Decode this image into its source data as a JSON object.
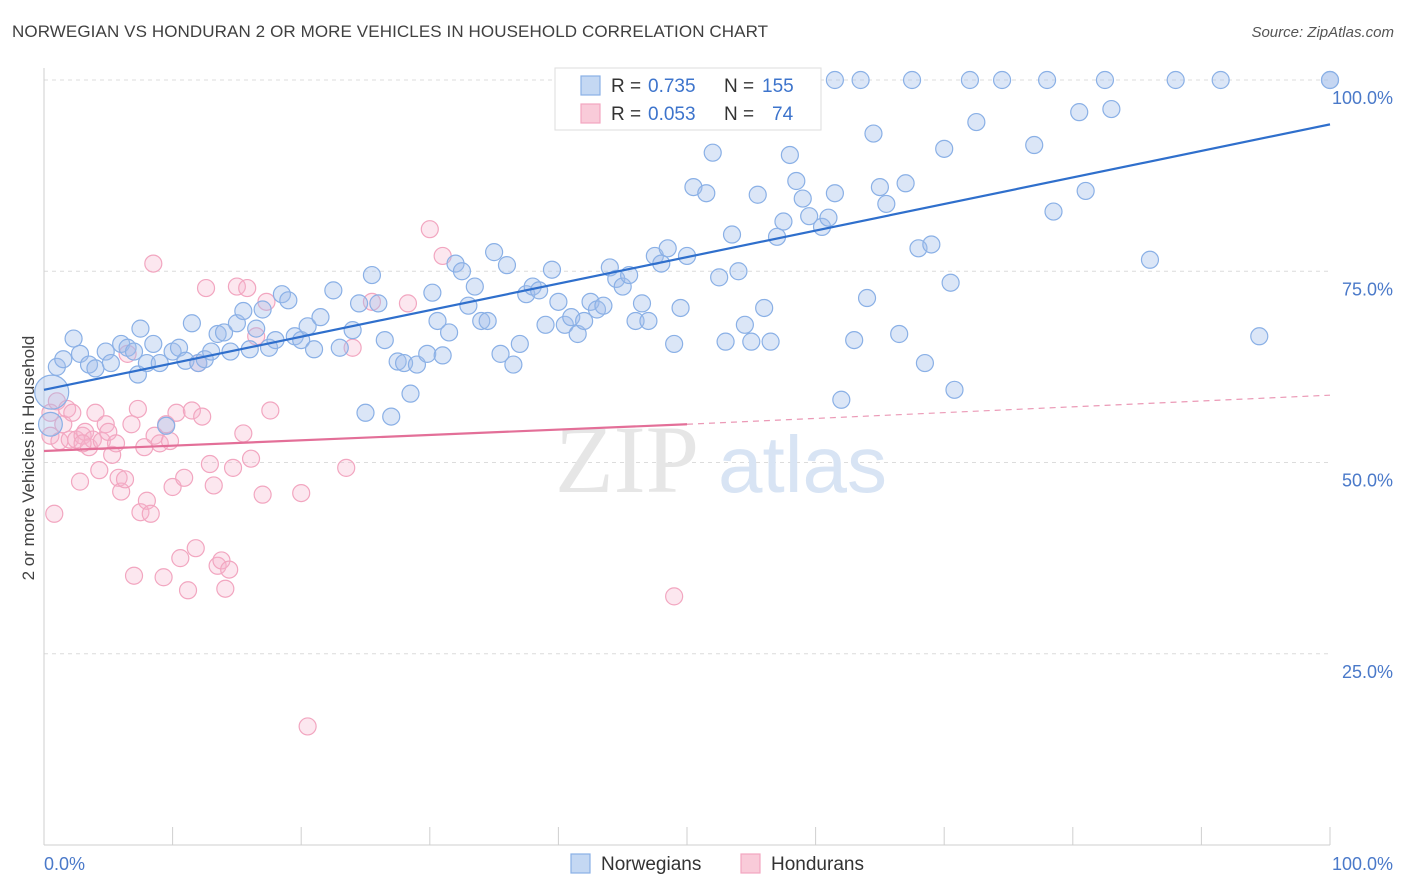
{
  "title": "NORWEGIAN VS HONDURAN 2 OR MORE VEHICLES IN HOUSEHOLD CORRELATION CHART",
  "source": "Source: ZipAtlas.com",
  "watermark": {
    "zip": "ZIP",
    "atlas": "atlas"
  },
  "colors": {
    "blue": "#8ab0e6",
    "blue_line": "#2f6fcc",
    "pink": "#f2a6c0",
    "pink_line": "#e36f98",
    "tick": "#4a79c9"
  },
  "legend_top": {
    "rows": [
      {
        "r_label": "R =",
        "r_value": "0.735",
        "n_label": "N =",
        "n_value": "155"
      },
      {
        "r_label": "R =",
        "r_value": "0.053",
        "n_label": "N =",
        "n_value": "74"
      }
    ]
  },
  "legend_bottom": {
    "items": [
      "Norwegians",
      "Hondurans"
    ]
  },
  "chart_data": {
    "type": "scatter",
    "title": "NORWEGIAN VS HONDURAN 2 OR MORE VEHICLES IN HOUSEHOLD CORRELATION CHART",
    "xlabel": "",
    "ylabel": "2 or more Vehicles in Household",
    "xlim": [
      0,
      100
    ],
    "ylim": [
      0,
      100
    ],
    "x_tick_labels": [
      "0.0%",
      "100.0%"
    ],
    "y_tick_labels": [
      "100.0%",
      "75.0%",
      "50.0%",
      "25.0%"
    ],
    "y_ticks": [
      100,
      75,
      50,
      25
    ],
    "grid": true,
    "legend_position": "top-center",
    "series": [
      {
        "name": "Norwegians",
        "r": 0.735,
        "n": 155,
        "trend": {
          "x": [
            0,
            100
          ],
          "y": [
            59.5,
            94.2
          ],
          "style": "solid"
        },
        "points": [
          [
            0.6,
            59.2,
            2
          ],
          [
            0.5,
            55.0,
            1.4
          ],
          [
            1.0,
            62.5,
            1
          ],
          [
            1.5,
            63.5,
            1
          ],
          [
            2.3,
            66.2,
            1
          ],
          [
            2.8,
            64.2,
            1
          ],
          [
            3.5,
            62.8,
            1
          ],
          [
            4.0,
            62.3,
            1
          ],
          [
            4.8,
            64.5,
            1
          ],
          [
            5.2,
            63.0,
            1
          ],
          [
            6.0,
            65.5,
            1
          ],
          [
            6.5,
            65.0,
            1
          ],
          [
            7.0,
            64.5,
            1
          ],
          [
            7.3,
            61.5,
            1
          ],
          [
            7.5,
            67.5,
            1
          ],
          [
            8.0,
            63.0,
            1
          ],
          [
            8.5,
            65.5,
            1
          ],
          [
            9.0,
            63.0,
            1
          ],
          [
            9.5,
            54.8,
            1
          ],
          [
            10.0,
            64.5,
            1
          ],
          [
            10.5,
            65.0,
            1
          ],
          [
            11.0,
            63.3,
            1
          ],
          [
            11.5,
            68.2,
            1
          ],
          [
            12.0,
            63.0,
            1
          ],
          [
            12.5,
            63.5,
            1
          ],
          [
            13.0,
            64.5,
            1
          ],
          [
            13.5,
            66.8,
            1
          ],
          [
            14.0,
            67.0,
            1
          ],
          [
            14.5,
            64.5,
            1
          ],
          [
            15.0,
            68.2,
            1
          ],
          [
            15.5,
            69.8,
            1
          ],
          [
            16.0,
            64.8,
            1
          ],
          [
            16.5,
            67.5,
            1
          ],
          [
            17.0,
            70.0,
            1
          ],
          [
            17.5,
            65.0,
            1
          ],
          [
            18.0,
            66.0,
            1
          ],
          [
            18.5,
            72.0,
            1
          ],
          [
            19.0,
            71.2,
            1
          ],
          [
            19.5,
            66.5,
            1
          ],
          [
            20.0,
            66.0,
            1
          ],
          [
            20.5,
            67.8,
            1
          ],
          [
            21.0,
            64.8,
            1
          ],
          [
            21.5,
            69.0,
            1
          ],
          [
            22.5,
            72.5,
            1
          ],
          [
            23.0,
            65.0,
            1
          ],
          [
            24.0,
            67.3,
            1
          ],
          [
            24.5,
            70.8,
            1
          ],
          [
            25.0,
            56.5,
            1
          ],
          [
            25.5,
            74.5,
            1
          ],
          [
            26.0,
            70.8,
            1
          ],
          [
            26.5,
            66.0,
            1
          ],
          [
            27.0,
            56.0,
            1
          ],
          [
            27.5,
            63.2,
            1
          ],
          [
            28.0,
            63.0,
            1
          ],
          [
            28.5,
            59.0,
            1
          ],
          [
            29.0,
            62.8,
            1
          ],
          [
            29.8,
            64.2,
            1
          ],
          [
            30.2,
            72.2,
            1
          ],
          [
            30.6,
            68.5,
            1
          ],
          [
            31.0,
            64.0,
            1
          ],
          [
            31.5,
            67.0,
            1
          ],
          [
            32.0,
            76.0,
            1
          ],
          [
            32.5,
            75.0,
            1
          ],
          [
            33.0,
            70.5,
            1
          ],
          [
            33.5,
            73.0,
            1
          ],
          [
            34.0,
            68.5,
            1
          ],
          [
            34.5,
            68.5,
            1
          ],
          [
            35.0,
            77.5,
            1
          ],
          [
            35.5,
            64.2,
            1
          ],
          [
            36.0,
            75.8,
            1
          ],
          [
            36.5,
            62.8,
            1
          ],
          [
            37.0,
            65.5,
            1
          ],
          [
            37.5,
            72.0,
            1
          ],
          [
            38.0,
            73.0,
            1
          ],
          [
            38.5,
            72.5,
            1
          ],
          [
            39.0,
            68.0,
            1
          ],
          [
            39.5,
            75.2,
            1
          ],
          [
            40.0,
            71.0,
            1
          ],
          [
            40.5,
            68.0,
            1
          ],
          [
            41.0,
            69.0,
            1
          ],
          [
            41.5,
            66.8,
            1
          ],
          [
            42.0,
            68.5,
            1
          ],
          [
            42.5,
            71.0,
            1
          ],
          [
            43.0,
            70.0,
            1
          ],
          [
            43.5,
            70.5,
            1
          ],
          [
            44.0,
            75.5,
            1
          ],
          [
            44.5,
            74.0,
            1
          ],
          [
            45.0,
            73.0,
            1
          ],
          [
            45.5,
            74.5,
            1
          ],
          [
            46.0,
            68.5,
            1
          ],
          [
            46.5,
            70.8,
            1
          ],
          [
            47.0,
            68.5,
            1
          ],
          [
            47.5,
            77.0,
            1
          ],
          [
            48.0,
            76.0,
            1
          ],
          [
            48.5,
            78.0,
            1
          ],
          [
            49.0,
            65.5,
            1
          ],
          [
            49.5,
            70.2,
            1
          ],
          [
            50.0,
            77.0,
            1
          ],
          [
            50.5,
            86.0,
            1
          ],
          [
            51.5,
            85.2,
            1
          ],
          [
            52.0,
            90.5,
            1
          ],
          [
            52.5,
            74.2,
            1
          ],
          [
            53.0,
            65.8,
            1
          ],
          [
            53.5,
            79.8,
            1
          ],
          [
            54.0,
            75.0,
            1
          ],
          [
            54.5,
            68.0,
            1
          ],
          [
            55.0,
            65.8,
            1
          ],
          [
            55.5,
            85.0,
            1
          ],
          [
            56.0,
            70.2,
            1
          ],
          [
            56.5,
            65.8,
            1
          ],
          [
            57.0,
            79.5,
            1
          ],
          [
            57.5,
            81.5,
            1
          ],
          [
            58.0,
            90.2,
            1
          ],
          [
            58.5,
            86.8,
            1
          ],
          [
            59.0,
            84.5,
            1
          ],
          [
            59.5,
            82.2,
            1
          ],
          [
            60.5,
            80.8,
            1
          ],
          [
            61.0,
            82.0,
            1
          ],
          [
            61.5,
            85.2,
            1
          ],
          [
            62.0,
            58.2,
            1
          ],
          [
            63.0,
            66.0,
            1
          ],
          [
            63.5,
            100,
            1
          ],
          [
            64.0,
            71.5,
            1
          ],
          [
            64.5,
            93.0,
            1
          ],
          [
            65.0,
            86.0,
            1
          ],
          [
            65.5,
            83.8,
            1
          ],
          [
            66.5,
            66.8,
            1
          ],
          [
            67.0,
            86.5,
            1
          ],
          [
            67.5,
            100,
            1
          ],
          [
            68.0,
            78.0,
            1
          ],
          [
            68.5,
            63.0,
            1
          ],
          [
            69.0,
            78.5,
            1
          ],
          [
            70.0,
            91.0,
            1
          ],
          [
            70.5,
            73.5,
            1
          ],
          [
            70.8,
            59.5,
            1
          ],
          [
            72.0,
            100,
            1
          ],
          [
            72.5,
            94.5,
            1
          ],
          [
            74.5,
            100,
            1
          ],
          [
            77.0,
            91.5,
            1
          ],
          [
            78.0,
            100,
            1
          ],
          [
            78.5,
            82.8,
            1
          ],
          [
            80.5,
            95.8,
            1
          ],
          [
            81.0,
            85.5,
            1
          ],
          [
            82.5,
            100,
            1
          ],
          [
            83.0,
            96.2,
            1
          ],
          [
            86.0,
            76.5,
            1
          ],
          [
            88.0,
            100,
            1
          ],
          [
            91.5,
            100,
            1
          ],
          [
            94.5,
            66.5,
            1
          ],
          [
            100,
            100,
            1
          ],
          [
            100,
            100,
            1
          ],
          [
            61.5,
            100,
            1
          ]
        ]
      },
      {
        "name": "Hondurans",
        "r": 0.053,
        "n": 74,
        "trend": {
          "x": [
            0,
            50
          ],
          "y": [
            51.5,
            55.0
          ],
          "style": "solid",
          "dashed_to": [
            100,
            58.8
          ]
        },
        "points": [
          [
            0.5,
            56.5,
            1
          ],
          [
            0.5,
            53.5,
            1
          ],
          [
            0.8,
            43.3,
            1
          ],
          [
            1.0,
            58.0,
            1
          ],
          [
            1.2,
            52.8,
            1
          ],
          [
            1.5,
            55.0,
            1
          ],
          [
            1.8,
            57.0,
            1
          ],
          [
            2.0,
            53.0,
            1
          ],
          [
            2.2,
            56.5,
            1
          ],
          [
            2.5,
            53.0,
            1
          ],
          [
            2.8,
            47.5,
            1
          ],
          [
            3.0,
            53.5,
            1
          ],
          [
            3.2,
            54.0,
            1
          ],
          [
            3.5,
            52.0,
            1
          ],
          [
            3.8,
            53.0,
            1
          ],
          [
            4.0,
            56.5,
            1
          ],
          [
            4.3,
            49.0,
            1
          ],
          [
            4.5,
            52.8,
            1
          ],
          [
            4.8,
            55.0,
            1
          ],
          [
            5.0,
            54.0,
            1
          ],
          [
            5.3,
            51.0,
            1
          ],
          [
            5.6,
            52.5,
            1
          ],
          [
            5.8,
            48.0,
            1
          ],
          [
            6.0,
            46.2,
            1
          ],
          [
            6.3,
            47.8,
            1
          ],
          [
            6.5,
            64.2,
            1
          ],
          [
            6.8,
            55.0,
            1
          ],
          [
            7.0,
            35.2,
            1
          ],
          [
            7.3,
            57.0,
            1
          ],
          [
            7.5,
            43.5,
            1
          ],
          [
            7.8,
            52.0,
            1
          ],
          [
            8.0,
            45.0,
            1
          ],
          [
            8.3,
            43.3,
            1
          ],
          [
            8.6,
            53.5,
            1
          ],
          [
            8.5,
            76.0,
            1
          ],
          [
            9.0,
            52.5,
            1
          ],
          [
            9.3,
            35.0,
            1
          ],
          [
            9.5,
            55.0,
            1
          ],
          [
            9.8,
            52.8,
            1
          ],
          [
            10.0,
            46.8,
            1
          ],
          [
            10.3,
            56.5,
            1
          ],
          [
            10.6,
            37.5,
            1
          ],
          [
            10.9,
            48.0,
            1
          ],
          [
            11.2,
            33.3,
            1
          ],
          [
            11.5,
            56.8,
            1
          ],
          [
            11.8,
            38.8,
            1
          ],
          [
            12.0,
            63.0,
            1
          ],
          [
            12.3,
            56.0,
            1
          ],
          [
            12.6,
            72.8,
            1
          ],
          [
            12.9,
            49.8,
            1
          ],
          [
            13.2,
            47.0,
            1
          ],
          [
            13.5,
            36.5,
            1
          ],
          [
            13.8,
            37.2,
            1
          ],
          [
            14.1,
            33.5,
            1
          ],
          [
            14.4,
            36.0,
            1
          ],
          [
            14.7,
            49.3,
            1
          ],
          [
            15.0,
            73.0,
            1
          ],
          [
            15.5,
            53.8,
            1
          ],
          [
            15.8,
            72.8,
            1
          ],
          [
            16.1,
            50.5,
            1
          ],
          [
            16.5,
            66.5,
            1
          ],
          [
            17.0,
            45.8,
            1
          ],
          [
            17.3,
            71.0,
            1
          ],
          [
            17.6,
            56.8,
            1
          ],
          [
            20.0,
            46.0,
            1
          ],
          [
            20.5,
            15.5,
            1
          ],
          [
            23.5,
            49.3,
            1
          ],
          [
            24.0,
            65.0,
            1
          ],
          [
            25.5,
            71.0,
            1
          ],
          [
            28.3,
            70.8,
            1
          ],
          [
            30.0,
            80.5,
            1
          ],
          [
            31.0,
            77.0,
            1
          ],
          [
            49.0,
            32.5,
            1
          ],
          [
            3.0,
            52.5,
            1
          ]
        ]
      }
    ]
  }
}
